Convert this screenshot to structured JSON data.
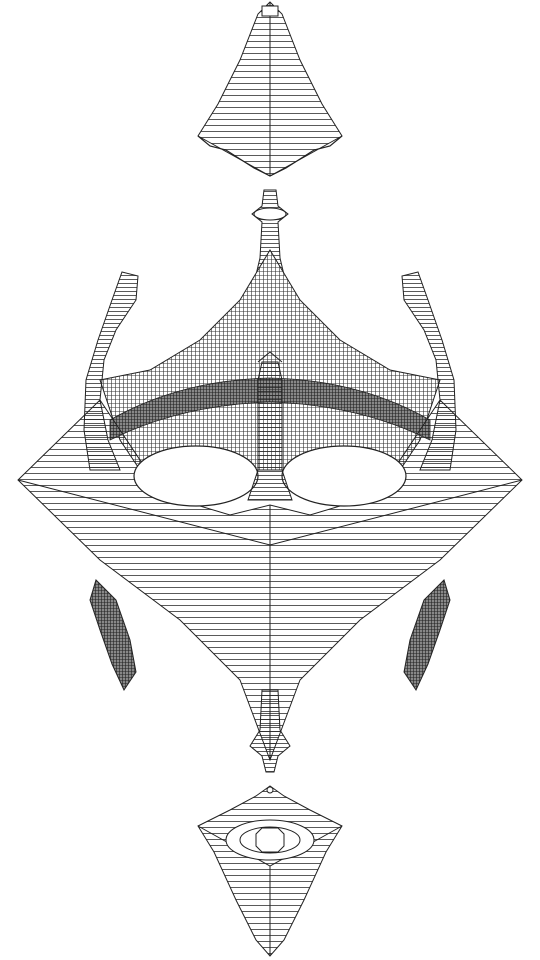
{
  "artwork": {
    "background_color": "#ffffff",
    "stroke_color": "#222222",
    "fill_color": "#ffffff",
    "hole_color": "#ffffff",
    "dense_shade_color": "#555555"
  }
}
